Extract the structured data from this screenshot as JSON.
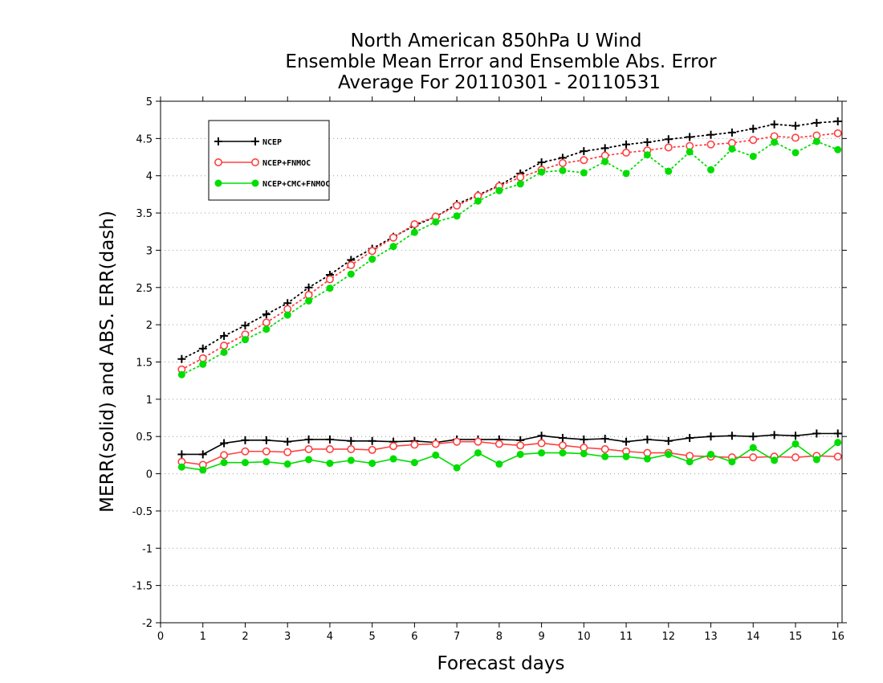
{
  "chart_data": {
    "type": "line",
    "title_lines": [
      "North American 850hPa U Wind",
      "Ensemble Mean Error and Ensemble Abs. Error",
      "Average For 20110301 - 20110531"
    ],
    "xlabel": "Forecast days",
    "ylabel": "MERR(solid) and ABS. ERR(dash)",
    "xlim": [
      0,
      16.1
    ],
    "ylim": [
      -2,
      5
    ],
    "x_ticks": [
      "0",
      "1",
      "2",
      "3",
      "4",
      "5",
      "6",
      "7",
      "8",
      "9",
      "10",
      "11",
      "12",
      "13",
      "14",
      "15",
      "16"
    ],
    "y_ticks": [
      "-2",
      "-1.5",
      "-1",
      "-0.5",
      "0",
      "0.5",
      "1",
      "1.5",
      "2",
      "2.5",
      "3",
      "3.5",
      "4",
      "4.5",
      "5"
    ],
    "grid": "horizontal dotted",
    "legend_position": "top-left",
    "x": [
      0.5,
      1,
      1.5,
      2,
      2.5,
      3,
      3.5,
      4,
      4.5,
      5,
      5.5,
      6,
      6.5,
      7,
      7.5,
      8,
      8.5,
      9,
      9.5,
      10,
      10.5,
      11,
      11.5,
      12,
      12.5,
      13,
      13.5,
      14,
      14.5,
      15,
      15.5,
      16
    ],
    "series": [
      {
        "name": "NCEP",
        "color": "#000000",
        "marker": "plus",
        "abs_err": [
          1.54,
          1.68,
          1.85,
          1.99,
          2.14,
          2.29,
          2.5,
          2.67,
          2.87,
          3.02,
          3.18,
          3.33,
          3.45,
          3.62,
          3.74,
          3.87,
          4.03,
          4.18,
          4.24,
          4.33,
          4.37,
          4.42,
          4.45,
          4.49,
          4.52,
          4.55,
          4.58,
          4.63,
          4.69,
          4.67,
          4.71,
          4.73
        ],
        "mean_err": [
          0.26,
          0.26,
          0.41,
          0.45,
          0.45,
          0.43,
          0.46,
          0.46,
          0.44,
          0.44,
          0.43,
          0.44,
          0.42,
          0.46,
          0.46,
          0.46,
          0.45,
          0.51,
          0.48,
          0.46,
          0.47,
          0.43,
          0.46,
          0.44,
          0.48,
          0.5,
          0.51,
          0.5,
          0.52,
          0.51,
          0.54,
          0.54
        ]
      },
      {
        "name": "NCEP+FNMOC",
        "color": "#ff4040",
        "marker": "open-circle",
        "abs_err": [
          1.4,
          1.55,
          1.72,
          1.87,
          2.03,
          2.21,
          2.4,
          2.61,
          2.8,
          2.99,
          3.17,
          3.35,
          3.45,
          3.6,
          3.73,
          3.86,
          3.98,
          4.08,
          4.17,
          4.21,
          4.27,
          4.31,
          4.34,
          4.38,
          4.4,
          4.42,
          4.44,
          4.48,
          4.53,
          4.51,
          4.54,
          4.57
        ],
        "mean_err": [
          0.16,
          0.12,
          0.25,
          0.3,
          0.3,
          0.29,
          0.33,
          0.33,
          0.33,
          0.32,
          0.37,
          0.39,
          0.4,
          0.43,
          0.43,
          0.4,
          0.38,
          0.41,
          0.38,
          0.35,
          0.33,
          0.3,
          0.28,
          0.28,
          0.24,
          0.23,
          0.22,
          0.22,
          0.23,
          0.22,
          0.24,
          0.23
        ]
      },
      {
        "name": "NCEP+CMC+FNMOC",
        "color": "#00dd00",
        "marker": "filled-circle",
        "abs_err": [
          1.33,
          1.47,
          1.63,
          1.8,
          1.94,
          2.13,
          2.32,
          2.49,
          2.68,
          2.88,
          3.05,
          3.24,
          3.38,
          3.46,
          3.66,
          3.8,
          3.89,
          4.05,
          4.07,
          4.04,
          4.19,
          4.03,
          4.28,
          4.06,
          4.32,
          4.08,
          4.36,
          4.26,
          4.45,
          4.31,
          4.46,
          4.35
        ],
        "mean_err": [
          0.09,
          0.05,
          0.15,
          0.15,
          0.16,
          0.13,
          0.19,
          0.14,
          0.18,
          0.14,
          0.2,
          0.15,
          0.25,
          0.08,
          0.28,
          0.13,
          0.26,
          0.28,
          0.28,
          0.27,
          0.23,
          0.23,
          0.2,
          0.26,
          0.16,
          0.26,
          0.16,
          0.35,
          0.18,
          0.4,
          0.19,
          0.42
        ]
      }
    ]
  }
}
